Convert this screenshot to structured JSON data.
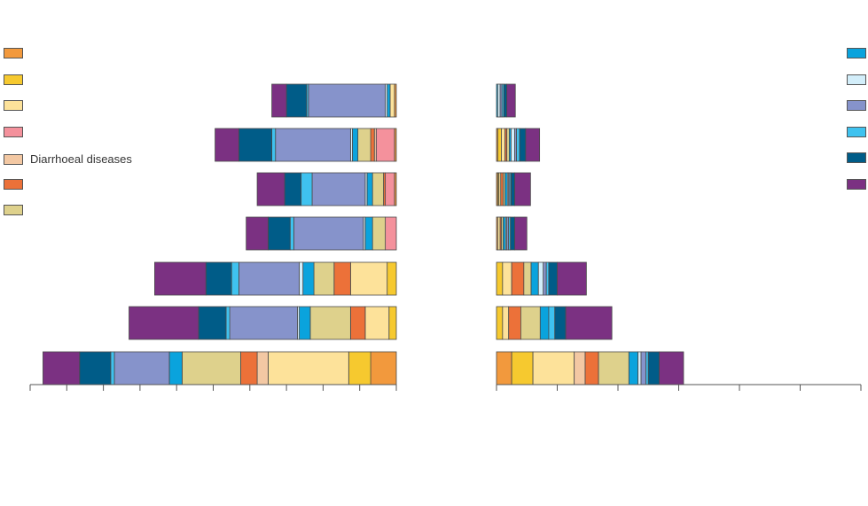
{
  "title": "",
  "subtitle": "",
  "footnote": "",
  "legend_left": [
    {
      "label": "",
      "color": "#F2993D"
    },
    {
      "label": "",
      "color": "#F6C92F"
    },
    {
      "label": "",
      "color": "#FDE29A"
    },
    {
      "label": "",
      "color": "#F4919C"
    },
    {
      "label": "Diarrhoeal diseases",
      "color": "#F3C8A3"
    },
    {
      "label": "",
      "color": "#EC7139"
    },
    {
      "label": "",
      "color": "#DED18C"
    }
  ],
  "legend_right": [
    {
      "label": "",
      "color": "#0AA3DD"
    },
    {
      "label": "",
      "color": "#D3EEFA"
    },
    {
      "label": "",
      "color": "#8693CB"
    },
    {
      "label": "",
      "color": "#3FC2EF"
    },
    {
      "label": "",
      "color": "#005C88"
    },
    {
      "label": "",
      "color": "#7B3182"
    }
  ],
  "chart_data": {
    "type": "bar",
    "orientation": "horizontal",
    "layout": "back-to-back stacked bars",
    "categories": [
      "",
      "",
      "",
      "",
      "",
      "",
      ""
    ],
    "left_panel": {
      "xlabel": "",
      "tick_labels": [
        "",
        "",
        "",
        "",
        "",
        "",
        "",
        "",
        "",
        "",
        ""
      ],
      "scale_max": 10,
      "bars": [
        {
          "segments": [
            [
              "#7B3182",
              0.4
            ],
            [
              "#005C88",
              0.55
            ],
            [
              "#3FC2EF",
              0.05
            ],
            [
              "#8693CB",
              2.1
            ],
            [
              "#D3EEFA",
              0.05
            ],
            [
              "#0AA3DD",
              0.08
            ],
            [
              "#FDE29A",
              0.12
            ],
            [
              "#F2993D",
              0.05
            ]
          ]
        },
        {
          "segments": [
            [
              "#7B3182",
              0.65
            ],
            [
              "#005C88",
              0.9
            ],
            [
              "#3FC2EF",
              0.1
            ],
            [
              "#8693CB",
              2.05
            ],
            [
              "#D3EEFA",
              0.05
            ],
            [
              "#0AA3DD",
              0.15
            ],
            [
              "#DED18C",
              0.35
            ],
            [
              "#EC7139",
              0.1
            ],
            [
              "#F3C8A3",
              0.05
            ],
            [
              "#F4919C",
              0.5
            ],
            [
              "#F2993D",
              0.05
            ]
          ]
        },
        {
          "segments": [
            [
              "#7B3182",
              0.75
            ],
            [
              "#005C88",
              0.45
            ],
            [
              "#3FC2EF",
              0.3
            ],
            [
              "#8693CB",
              1.45
            ],
            [
              "#D3EEFA",
              0.05
            ],
            [
              "#0AA3DD",
              0.15
            ],
            [
              "#DED18C",
              0.3
            ],
            [
              "#EC7139",
              0.05
            ],
            [
              "#F4919C",
              0.25
            ],
            [
              "#F2993D",
              0.05
            ]
          ]
        },
        {
          "segments": [
            [
              "#7B3182",
              0.6
            ],
            [
              "#005C88",
              0.6
            ],
            [
              "#3FC2EF",
              0.1
            ],
            [
              "#8693CB",
              1.9
            ],
            [
              "#D3EEFA",
              0.05
            ],
            [
              "#0AA3DD",
              0.2
            ],
            [
              "#DED18C",
              0.35
            ],
            [
              "#F4919C",
              0.3
            ]
          ]
        },
        {
          "segments": [
            [
              "#7B3182",
              1.4
            ],
            [
              "#005C88",
              0.7
            ],
            [
              "#3FC2EF",
              0.2
            ],
            [
              "#8693CB",
              1.65
            ],
            [
              "#D3EEFA",
              0.1
            ],
            [
              "#0AA3DD",
              0.3
            ],
            [
              "#DED18C",
              0.55
            ],
            [
              "#EC7139",
              0.45
            ],
            [
              "#FDE29A",
              1.0
            ],
            [
              "#F6C92F",
              0.25
            ]
          ]
        },
        {
          "segments": [
            [
              "#7B3182",
              1.9
            ],
            [
              "#005C88",
              0.75
            ],
            [
              "#3FC2EF",
              0.1
            ],
            [
              "#8693CB",
              1.85
            ],
            [
              "#D3EEFA",
              0.05
            ],
            [
              "#0AA3DD",
              0.3
            ],
            [
              "#DED18C",
              1.1
            ],
            [
              "#EC7139",
              0.4
            ],
            [
              "#FDE29A",
              0.65
            ],
            [
              "#F6C92F",
              0.2
            ]
          ]
        },
        {
          "segments": [
            [
              "#7B3182",
              1.0
            ],
            [
              "#005C88",
              0.85
            ],
            [
              "#3FC2EF",
              0.1
            ],
            [
              "#8693CB",
              1.5
            ],
            [
              "#0AA3DD",
              0.35
            ],
            [
              "#DED18C",
              1.6
            ],
            [
              "#EC7139",
              0.45
            ],
            [
              "#F3C8A3",
              0.3
            ],
            [
              "#FDE29A",
              2.2
            ],
            [
              "#F6C92F",
              0.6
            ],
            [
              "#F2993D",
              0.7
            ]
          ]
        }
      ]
    },
    "right_panel": {
      "xlabel": "",
      "tick_labels": [
        "",
        "",
        "",
        "",
        "",
        "",
        ""
      ],
      "scale_max": 6,
      "bars": [
        {
          "segments": [
            [
              "#0AA3DD",
              0.02
            ],
            [
              "#D3EEFA",
              0.04
            ],
            [
              "#8693CB",
              0.03
            ],
            [
              "#3FC2EF",
              0.03
            ],
            [
              "#005C88",
              0.05
            ],
            [
              "#7B3182",
              0.14
            ]
          ]
        },
        {
          "segments": [
            [
              "#F2993D",
              0.02
            ],
            [
              "#F6C92F",
              0.06
            ],
            [
              "#FDE29A",
              0.06
            ],
            [
              "#EC7139",
              0.03
            ],
            [
              "#DED18C",
              0.04
            ],
            [
              "#0AA3DD",
              0.03
            ],
            [
              "#D3EEFA",
              0.06
            ],
            [
              "#8693CB",
              0.03
            ],
            [
              "#3FC2EF",
              0.05
            ],
            [
              "#005C88",
              0.1
            ],
            [
              "#7B3182",
              0.23
            ]
          ]
        },
        {
          "segments": [
            [
              "#F2993D",
              0.02
            ],
            [
              "#F6C92F",
              0.02
            ],
            [
              "#FDE29A",
              0.03
            ],
            [
              "#EC7139",
              0.04
            ],
            [
              "#DED18C",
              0.03
            ],
            [
              "#0AA3DD",
              0.04
            ],
            [
              "#D3EEFA",
              0.02
            ],
            [
              "#8693CB",
              0.02
            ],
            [
              "#3FC2EF",
              0.02
            ],
            [
              "#005C88",
              0.06
            ],
            [
              "#7B3182",
              0.26
            ]
          ]
        },
        {
          "segments": [
            [
              "#F2993D",
              0.02
            ],
            [
              "#FDE29A",
              0.04
            ],
            [
              "#EC7139",
              0.02
            ],
            [
              "#DED18C",
              0.03
            ],
            [
              "#0AA3DD",
              0.04
            ],
            [
              "#D3EEFA",
              0.02
            ],
            [
              "#8693CB",
              0.03
            ],
            [
              "#3FC2EF",
              0.03
            ],
            [
              "#005C88",
              0.07
            ],
            [
              "#7B3182",
              0.2
            ]
          ]
        },
        {
          "segments": [
            [
              "#F6C92F",
              0.1
            ],
            [
              "#FDE29A",
              0.15
            ],
            [
              "#EC7139",
              0.2
            ],
            [
              "#DED18C",
              0.12
            ],
            [
              "#0AA3DD",
              0.12
            ],
            [
              "#D3EEFA",
              0.08
            ],
            [
              "#8693CB",
              0.05
            ],
            [
              "#3FC2EF",
              0.04
            ],
            [
              "#005C88",
              0.14
            ],
            [
              "#7B3182",
              0.48
            ]
          ]
        },
        {
          "segments": [
            [
              "#F6C92F",
              0.1
            ],
            [
              "#FDE29A",
              0.1
            ],
            [
              "#EC7139",
              0.2
            ],
            [
              "#DED18C",
              0.32
            ],
            [
              "#0AA3DD",
              0.14
            ],
            [
              "#3FC2EF",
              0.1
            ],
            [
              "#005C88",
              0.18
            ],
            [
              "#7B3182",
              0.76
            ]
          ]
        },
        {
          "segments": [
            [
              "#F2993D",
              0.25
            ],
            [
              "#F6C92F",
              0.35
            ],
            [
              "#FDE29A",
              0.68
            ],
            [
              "#F3C8A3",
              0.18
            ],
            [
              "#EC7139",
              0.22
            ],
            [
              "#DED18C",
              0.5
            ],
            [
              "#0AA3DD",
              0.15
            ],
            [
              "#D3EEFA",
              0.05
            ],
            [
              "#8693CB",
              0.08
            ],
            [
              "#3FC2EF",
              0.04
            ],
            [
              "#005C88",
              0.18
            ],
            [
              "#7B3182",
              0.4
            ]
          ]
        }
      ]
    }
  }
}
